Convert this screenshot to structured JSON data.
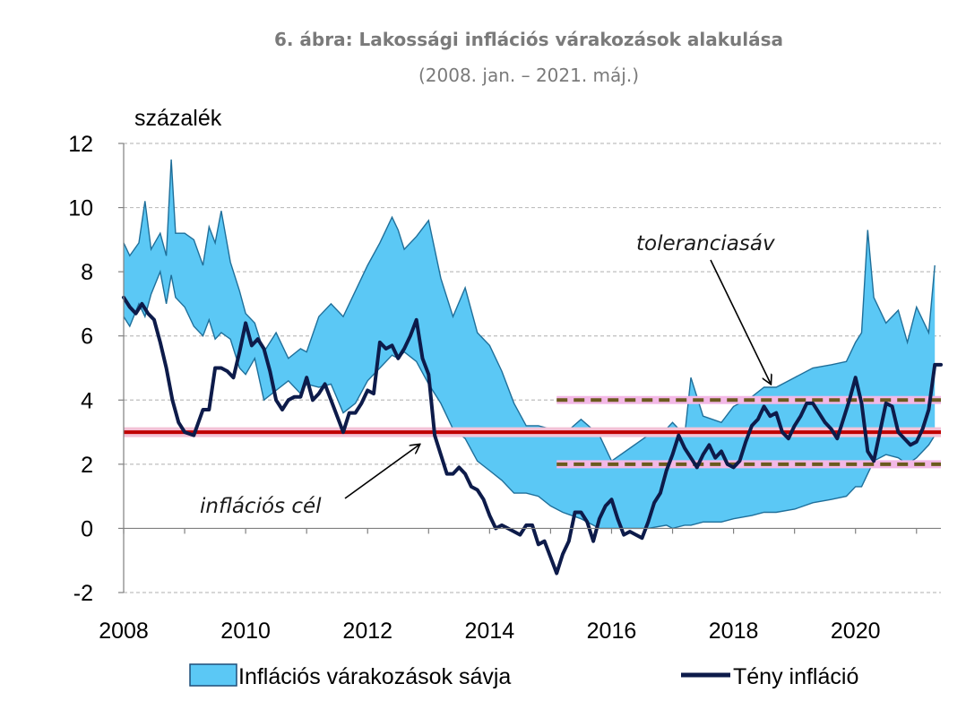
{
  "chart_data": {
    "type": "area",
    "title": "6. ábra: Lakossági inflációs várakozások alakulása",
    "subtitle": "(2008. jan. – 2021. máj.)",
    "ylabel": "százalék",
    "xlabel": "",
    "xlim": [
      2008.0,
      2021.4
    ],
    "ylim": [
      -2,
      12
    ],
    "x_ticks": [
      "2008",
      "2010",
      "2012",
      "2014",
      "2016",
      "2018",
      "2020"
    ],
    "y_ticks": [
      "-2",
      "0",
      "2",
      "4",
      "6",
      "8",
      "10",
      "12"
    ],
    "grid": true,
    "legend_position": "bottom",
    "colors": {
      "band_fill": "#5bc8f5",
      "band_edge": "#1f6f9a",
      "actual": "#0d1b4a",
      "target": "#c00000",
      "target_glow": "#f3c2d6",
      "tolerance": "#6b5a1e",
      "tolerance_glow": "#f3b8e6",
      "grid": "#bfbfbf"
    },
    "series": [
      {
        "name": "Inflációs várakozások sávja",
        "kind": "band",
        "x": [
          2008.0,
          2008.1,
          2008.25,
          2008.35,
          2008.45,
          2008.6,
          2008.7,
          2008.78,
          2008.85,
          2009.0,
          2009.15,
          2009.3,
          2009.4,
          2009.5,
          2009.6,
          2009.75,
          2009.9,
          2010.0,
          2010.15,
          2010.3,
          2010.5,
          2010.7,
          2010.9,
          2011.0,
          2011.2,
          2011.4,
          2011.6,
          2011.8,
          2012.0,
          2012.2,
          2012.4,
          2012.5,
          2012.6,
          2012.8,
          2013.0,
          2013.2,
          2013.4,
          2013.6,
          2013.8,
          2014.0,
          2014.2,
          2014.4,
          2014.6,
          2014.8,
          2015.0,
          2015.2,
          2015.5,
          2015.8,
          2016.0,
          2016.3,
          2016.6,
          2016.9,
          2017.0,
          2017.2,
          2017.3,
          2017.5,
          2017.8,
          2018.0,
          2018.3,
          2018.5,
          2018.7,
          2019.0,
          2019.3,
          2019.6,
          2019.85,
          2020.0,
          2020.1,
          2020.2,
          2020.3,
          2020.5,
          2020.7,
          2020.85,
          2021.0,
          2021.2,
          2021.3
        ],
        "upper": [
          8.9,
          8.5,
          8.9,
          10.2,
          8.7,
          9.2,
          8.5,
          11.5,
          9.2,
          9.2,
          9.0,
          8.2,
          9.4,
          8.9,
          9.9,
          8.3,
          7.4,
          6.7,
          6.4,
          5.5,
          6.1,
          5.3,
          5.6,
          5.5,
          6.6,
          7.0,
          6.6,
          7.4,
          8.2,
          8.9,
          9.7,
          9.3,
          8.7,
          9.1,
          9.6,
          7.8,
          6.6,
          7.5,
          6.1,
          5.7,
          4.9,
          3.9,
          3.2,
          3.2,
          3.1,
          2.9,
          3.4,
          2.9,
          2.1,
          2.5,
          2.9,
          3.1,
          3.3,
          2.9,
          4.7,
          3.5,
          3.3,
          3.8,
          4.1,
          4.4,
          4.4,
          4.7,
          5.0,
          5.1,
          5.2,
          5.8,
          6.1,
          9.3,
          7.2,
          6.4,
          6.8,
          5.8,
          6.9,
          6.1,
          8.2
        ],
        "lower": [
          6.6,
          6.3,
          7.0,
          6.6,
          7.3,
          8.0,
          7.0,
          7.9,
          7.2,
          6.9,
          6.3,
          6.0,
          6.5,
          5.9,
          6.1,
          5.9,
          5.0,
          4.8,
          5.3,
          4.0,
          4.3,
          4.6,
          4.2,
          4.5,
          4.4,
          4.5,
          3.6,
          3.9,
          4.6,
          5.0,
          5.4,
          5.3,
          5.5,
          5.2,
          4.5,
          3.9,
          3.1,
          2.8,
          2.1,
          1.8,
          1.5,
          1.1,
          1.1,
          1.0,
          0.7,
          0.5,
          0.3,
          0.0,
          0.0,
          0.0,
          0.0,
          0.1,
          0.0,
          0.1,
          0.1,
          0.2,
          0.2,
          0.3,
          0.4,
          0.5,
          0.5,
          0.6,
          0.8,
          0.9,
          1.0,
          1.3,
          1.3,
          1.7,
          2.1,
          2.3,
          2.2,
          2.0,
          2.2,
          2.6,
          2.9
        ]
      },
      {
        "name": "Tény infláció",
        "kind": "line",
        "x": [
          2008.0,
          2008.1,
          2008.2,
          2008.3,
          2008.4,
          2008.5,
          2008.6,
          2008.7,
          2008.8,
          2008.9,
          2009.0,
          2009.15,
          2009.3,
          2009.4,
          2009.5,
          2009.6,
          2009.7,
          2009.8,
          2009.9,
          2010.0,
          2010.1,
          2010.2,
          2010.3,
          2010.4,
          2010.5,
          2010.6,
          2010.7,
          2010.8,
          2010.9,
          2011.0,
          2011.1,
          2011.2,
          2011.3,
          2011.4,
          2011.5,
          2011.6,
          2011.7,
          2011.8,
          2011.9,
          2012.0,
          2012.1,
          2012.2,
          2012.3,
          2012.4,
          2012.5,
          2012.6,
          2012.7,
          2012.8,
          2012.9,
          2013.0,
          2013.1,
          2013.2,
          2013.3,
          2013.4,
          2013.5,
          2013.6,
          2013.7,
          2013.8,
          2013.9,
          2014.0,
          2014.1,
          2014.2,
          2014.3,
          2014.4,
          2014.5,
          2014.6,
          2014.7,
          2014.8,
          2014.9,
          2015.0,
          2015.1,
          2015.2,
          2015.3,
          2015.4,
          2015.5,
          2015.6,
          2015.7,
          2015.8,
          2015.9,
          2016.0,
          2016.1,
          2016.2,
          2016.3,
          2016.4,
          2016.5,
          2016.6,
          2016.7,
          2016.8,
          2016.9,
          2017.0,
          2017.1,
          2017.2,
          2017.3,
          2017.4,
          2017.5,
          2017.6,
          2017.7,
          2017.8,
          2017.9,
          2018.0,
          2018.1,
          2018.2,
          2018.3,
          2018.4,
          2018.5,
          2018.6,
          2018.7,
          2018.8,
          2018.9,
          2019.0,
          2019.1,
          2019.2,
          2019.3,
          2019.4,
          2019.5,
          2019.6,
          2019.7,
          2019.8,
          2019.9,
          2020.0,
          2020.1,
          2020.2,
          2020.3,
          2020.4,
          2020.5,
          2020.6,
          2020.7,
          2020.8,
          2020.9,
          2021.0,
          2021.1,
          2021.2,
          2021.3,
          2021.4
        ],
        "values": [
          7.2,
          6.9,
          6.7,
          7.0,
          6.7,
          6.5,
          5.8,
          5.0,
          4.0,
          3.3,
          3.0,
          2.9,
          3.7,
          3.7,
          5.0,
          5.0,
          4.9,
          4.7,
          5.5,
          6.4,
          5.7,
          5.9,
          5.6,
          4.9,
          4.0,
          3.7,
          4.0,
          4.1,
          4.1,
          4.7,
          4.0,
          4.2,
          4.5,
          4.0,
          3.5,
          3.0,
          3.6,
          3.6,
          3.9,
          4.3,
          4.2,
          5.8,
          5.6,
          5.7,
          5.3,
          5.6,
          6.0,
          6.5,
          5.3,
          4.8,
          2.9,
          2.3,
          1.7,
          1.7,
          1.9,
          1.7,
          1.3,
          1.2,
          0.9,
          0.4,
          0.0,
          0.1,
          0.0,
          -0.1,
          -0.2,
          0.1,
          0.1,
          -0.5,
          -0.4,
          -0.9,
          -1.4,
          -0.8,
          -0.4,
          0.5,
          0.5,
          0.2,
          -0.4,
          0.3,
          0.7,
          0.9,
          0.3,
          -0.2,
          -0.1,
          -0.2,
          -0.3,
          0.2,
          0.8,
          1.1,
          1.8,
          2.3,
          2.9,
          2.5,
          2.2,
          1.9,
          2.3,
          2.6,
          2.2,
          2.4,
          2.0,
          1.9,
          2.1,
          2.7,
          3.2,
          3.4,
          3.8,
          3.5,
          3.6,
          3.0,
          2.8,
          3.2,
          3.5,
          3.9,
          3.9,
          3.6,
          3.3,
          3.1,
          2.8,
          3.4,
          4.0,
          4.7,
          3.9,
          2.4,
          2.1,
          3.0,
          3.9,
          3.8,
          3.0,
          2.8,
          2.6,
          2.7,
          3.1,
          3.7,
          5.1,
          5.1
        ]
      }
    ],
    "reference_lines": [
      {
        "kind": "target",
        "value": 3.0,
        "x_start": 2008.0,
        "x_end": 2021.4
      },
      {
        "kind": "tolerance",
        "value": 4.0,
        "x_start": 2015.1,
        "x_end": 2021.4
      },
      {
        "kind": "tolerance",
        "value": 2.0,
        "x_start": 2015.1,
        "x_end": 2021.4
      }
    ],
    "annotations": [
      {
        "text": "toleranciasáv",
        "arrow_to": {
          "x": 2018.6,
          "y": 4.2
        }
      },
      {
        "text": "inflációs cél",
        "arrow_to": {
          "x": 2013.0,
          "y": 2.7
        }
      }
    ],
    "legend": [
      "Inflációs várakozások sávja",
      "Tény infláció"
    ]
  }
}
